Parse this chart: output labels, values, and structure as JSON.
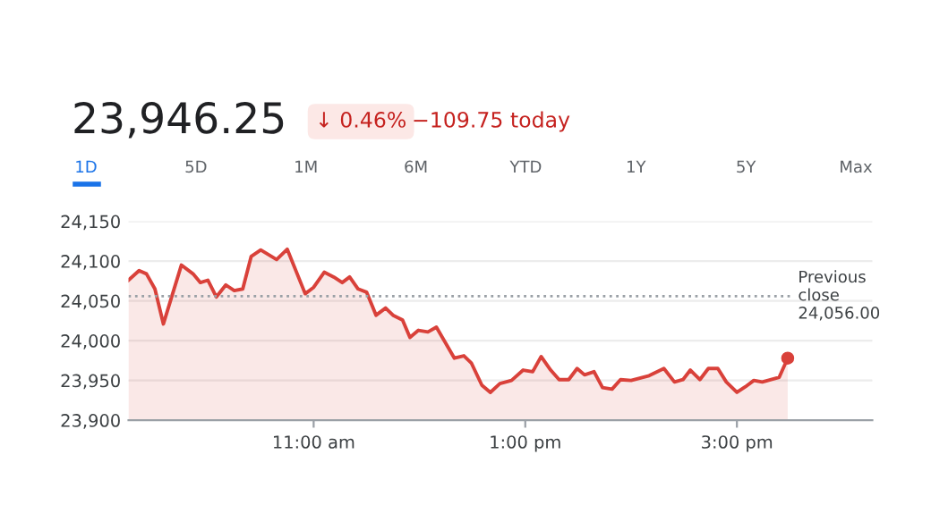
{
  "chart_data": {
    "type": "area",
    "title": "23,946.25",
    "annotations": [
      "↓ 0.46%",
      "−109.75 today",
      "1D",
      "5D",
      "1M",
      "6M",
      "YTD",
      "1Y",
      "5Y",
      "Max"
    ],
    "series": [
      {
        "color": "#d9413a",
        "x": [
          9.25,
          9.35,
          9.42,
          9.5,
          9.58,
          9.75,
          9.86,
          9.93,
          10.0,
          10.08,
          10.17,
          10.25,
          10.33,
          10.41,
          10.5,
          10.65,
          10.75,
          10.92,
          11.0,
          11.1,
          11.19,
          11.27,
          11.34,
          11.42,
          11.5,
          11.59,
          11.68,
          11.75,
          11.84,
          11.91,
          11.99,
          12.08,
          12.16,
          12.33,
          12.42,
          12.49,
          12.59,
          12.67,
          12.76,
          12.87,
          12.98,
          13.07,
          13.15,
          13.24,
          13.32,
          13.41,
          13.49,
          13.56,
          13.65,
          13.73,
          13.82,
          13.9,
          14.0,
          14.17,
          14.31,
          14.41,
          14.49,
          14.56,
          14.65,
          14.73,
          14.82,
          14.9,
          15.0,
          15.08,
          15.16,
          15.24,
          15.4,
          15.48
        ],
        "values": [
          24076,
          24088,
          24084,
          24065,
          24021,
          24095,
          24084,
          24073,
          24076,
          24055,
          24070,
          24063,
          24065,
          24106,
          24114,
          24102,
          24115,
          24059,
          24067,
          24086,
          24080,
          24073,
          24080,
          24065,
          24061,
          24032,
          24041,
          24032,
          24026,
          24004,
          24013,
          24011,
          24017,
          23978,
          23981,
          23972,
          23944,
          23935,
          23946,
          23950,
          23963,
          23961,
          23980,
          23963,
          23951,
          23951,
          23965,
          23957,
          23961,
          23941,
          23939,
          23951,
          23950,
          23956,
          23965,
          23948,
          23951,
          23963,
          23951,
          23965,
          23965,
          23948,
          23935,
          23942,
          23950,
          23948,
          23954,
          23978
        ]
      },
      {
        "type": "scatter",
        "color": "#d9413a",
        "x": [
          15.48
        ],
        "values": [
          23978
        ]
      }
    ],
    "xlim": [
      9.25,
      16.28
    ],
    "ylim": [
      23900,
      24150
    ],
    "xticks": [
      {
        "value": 11,
        "label": "11:00 am"
      },
      {
        "value": 13,
        "label": "1:00 pm"
      },
      {
        "value": 15,
        "label": "3:00 pm"
      }
    ],
    "yticks": [
      {
        "value": 23900,
        "label": "23,900"
      },
      {
        "value": 23950,
        "label": "23,950"
      },
      {
        "value": 24000,
        "label": "24,000"
      },
      {
        "value": 24050,
        "label": "24,050"
      },
      {
        "value": 24100,
        "label": "24,100"
      },
      {
        "value": 24150,
        "label": "24,150"
      }
    ],
    "grid": "y",
    "ref_lines": [
      {
        "axis": "y",
        "value": 24056,
        "label": "Previous\nclose\n24,056.00",
        "color": "#9aa0a6",
        "line_style": "dotted"
      }
    ]
  }
}
